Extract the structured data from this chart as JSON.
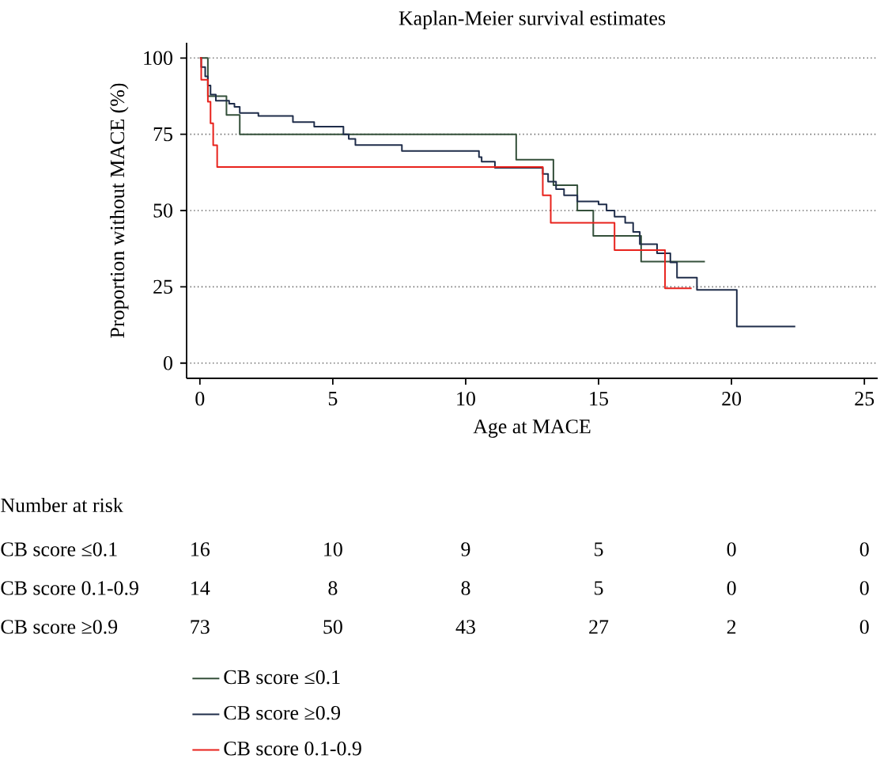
{
  "chart_data": {
    "type": "step",
    "title": "Kaplan-Meier survival estimates",
    "xlabel": "Age at MACE",
    "ylabel": "Proportion without MACE (%)",
    "xlim": [
      -0.5,
      25.5
    ],
    "ylim": [
      -5,
      105
    ],
    "xticks": [
      0,
      5,
      10,
      15,
      20,
      25
    ],
    "yticks": [
      0,
      25,
      50,
      75,
      100
    ],
    "grid": "y",
    "legend": "bottom",
    "series": [
      {
        "name": "CB score ≤0.1",
        "color": "#34503a",
        "x": [
          0,
          0.3,
          1.0,
          1.5,
          11.9,
          13.3,
          14.2,
          14.8,
          16.6,
          19.0
        ],
        "values": [
          100,
          87.5,
          81.3,
          75,
          66.7,
          58.3,
          50,
          41.7,
          33.3,
          33.3
        ]
      },
      {
        "name": "CB score ≥0.9",
        "color": "#1f2d4a",
        "x": [
          0,
          0.05,
          0.2,
          0.3,
          0.4,
          0.6,
          1.1,
          1.3,
          1.5,
          2.2,
          3.5,
          4.3,
          5.4,
          5.6,
          5.85,
          7.6,
          10.5,
          10.6,
          11.1,
          12.9,
          13.1,
          13.4,
          13.7,
          14.2,
          15.0,
          15.3,
          15.6,
          16.0,
          16.3,
          16.55,
          17.2,
          17.7,
          17.95,
          18.7,
          20.2,
          22.4
        ],
        "values": [
          100,
          97,
          94,
          91,
          88,
          86,
          85,
          84,
          82,
          81,
          79,
          77.5,
          75,
          73.5,
          71.5,
          69.5,
          67.5,
          66,
          64,
          62,
          59.5,
          57,
          55,
          53,
          52,
          50,
          48,
          46,
          43,
          39,
          36,
          33,
          28,
          24,
          12,
          12
        ]
      },
      {
        "name": "CB score 0.1-0.9",
        "color": "#e8221c",
        "x": [
          0,
          0.05,
          0.3,
          0.4,
          0.5,
          0.65,
          12.9,
          13.2,
          15.6,
          17.5,
          18.5
        ],
        "values": [
          100,
          92.9,
          85.7,
          78.6,
          71.4,
          64.3,
          55,
          46,
          37,
          24.5,
          24.5
        ]
      }
    ],
    "annotations": [
      "Number at risk",
      "CB score ≤0.1",
      "16",
      "10",
      "9",
      "5",
      "0",
      "0",
      "CB score 0.1-0.9",
      "14",
      "8",
      "8",
      "5",
      "0",
      "0",
      "CB score ≥0.9",
      "73",
      "50",
      "43",
      "27",
      "2",
      "0"
    ]
  }
}
